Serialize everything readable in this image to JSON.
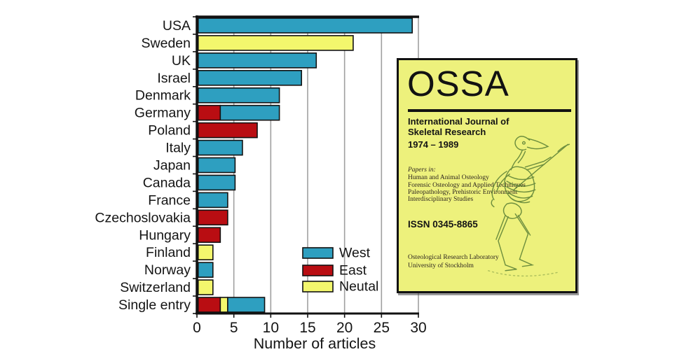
{
  "figure": {
    "background": "#FFFFFF"
  },
  "chart_data": {
    "type": "bar",
    "orientation": "horizontal",
    "stacked": true,
    "title": "",
    "xlabel": "Number of articles",
    "ylabel": "",
    "xlim": [
      0,
      30
    ],
    "xticks": [
      0,
      5,
      10,
      15,
      20,
      25,
      30
    ],
    "grid": "vertical",
    "gridline_color": "#A0A0A0",
    "axis_color": "#121212",
    "categories": [
      "USA",
      "Sweden",
      "UK",
      "Israel",
      "Denmark",
      "Germany",
      "Poland",
      "Italy",
      "Japan",
      "Canada",
      "France",
      "Czechoslovakia",
      "Hungary",
      "Finland",
      "Norway",
      "Switzerland",
      "Single entry"
    ],
    "series": [
      {
        "name": "West",
        "color": "#2E9FC0",
        "values": [
          29,
          0,
          16,
          14,
          11,
          8,
          0,
          6,
          5,
          5,
          4,
          0,
          0,
          0,
          2,
          0,
          5
        ]
      },
      {
        "name": "East",
        "color": "#B90D12",
        "values": [
          0,
          0,
          0,
          0,
          0,
          3,
          8,
          0,
          0,
          0,
          0,
          4,
          3,
          0,
          0,
          0,
          3
        ]
      },
      {
        "name": "Neutal",
        "color": "#F3F76D",
        "values": [
          0,
          21,
          0,
          0,
          0,
          0,
          0,
          0,
          0,
          0,
          0,
          0,
          0,
          2,
          0,
          2,
          1
        ]
      }
    ],
    "stack_order": [
      "East",
      "Neutal",
      "West"
    ],
    "legend": {
      "position": "inside-bottom",
      "entries": [
        "West",
        "East",
        "Neutal"
      ]
    }
  },
  "cover": {
    "title": "OSSA",
    "subtitle_lines": [
      "International Journal of",
      "Skeletal Research"
    ],
    "years": "1974 – 1989",
    "papers_in_label": "Papers in:",
    "topics": [
      "Human and Animal Osteology",
      "Forensic Osteology and Applied Techniques",
      "Paleopathology, Prehistoric Environment",
      "Interdisciplinary Studies"
    ],
    "issn": "ISSN 0345-8865",
    "affiliation_lines": [
      "Osteological Research Laboratory",
      "University of Stockholm"
    ],
    "background_color": "#EDF17C"
  }
}
